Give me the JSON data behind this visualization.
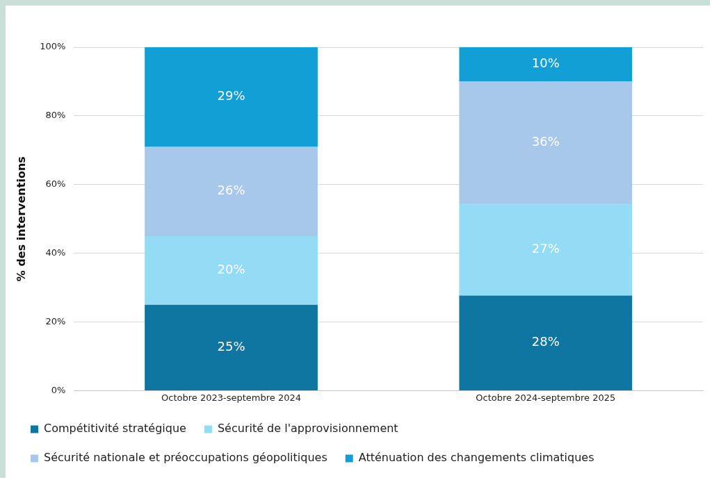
{
  "chart_data": {
    "type": "bar",
    "stacked": true,
    "ylabel": "% des interventions",
    "categories": [
      "Octobre 2023-septembre 2024",
      "Octobre 2024-septembre 2025"
    ],
    "series": [
      {
        "name": "Compétitivité stratégique",
        "color": "#0e76a0",
        "values": [
          25,
          27.7
        ],
        "value_labels": [
          "25%",
          "28%"
        ]
      },
      {
        "name": "Sécurité de l'approvisionnement",
        "color": "#94dbf5",
        "values": [
          20,
          26.8
        ],
        "value_labels": [
          "20%",
          "27%"
        ]
      },
      {
        "name": "Sécurité nationale et préoccupations géopolitiques",
        "color": "#a7c8eb",
        "values": [
          26,
          35.5
        ],
        "value_labels": [
          "26%",
          "36%"
        ]
      },
      {
        "name": "Atténuation des changements climatiques",
        "color": "#119fd6",
        "values": [
          29,
          10
        ],
        "value_labels": [
          "29%",
          "10%"
        ]
      }
    ],
    "ylim": [
      0,
      100
    ],
    "yticks": [
      {
        "value": 0,
        "label": "0%"
      },
      {
        "value": 20,
        "label": "20%"
      },
      {
        "value": 40,
        "label": "40%"
      },
      {
        "value": 60,
        "label": "60%"
      },
      {
        "value": 80,
        "label": "80%"
      },
      {
        "value": 100,
        "label": "100%"
      }
    ],
    "grid": "y",
    "legend": "bottom"
  }
}
